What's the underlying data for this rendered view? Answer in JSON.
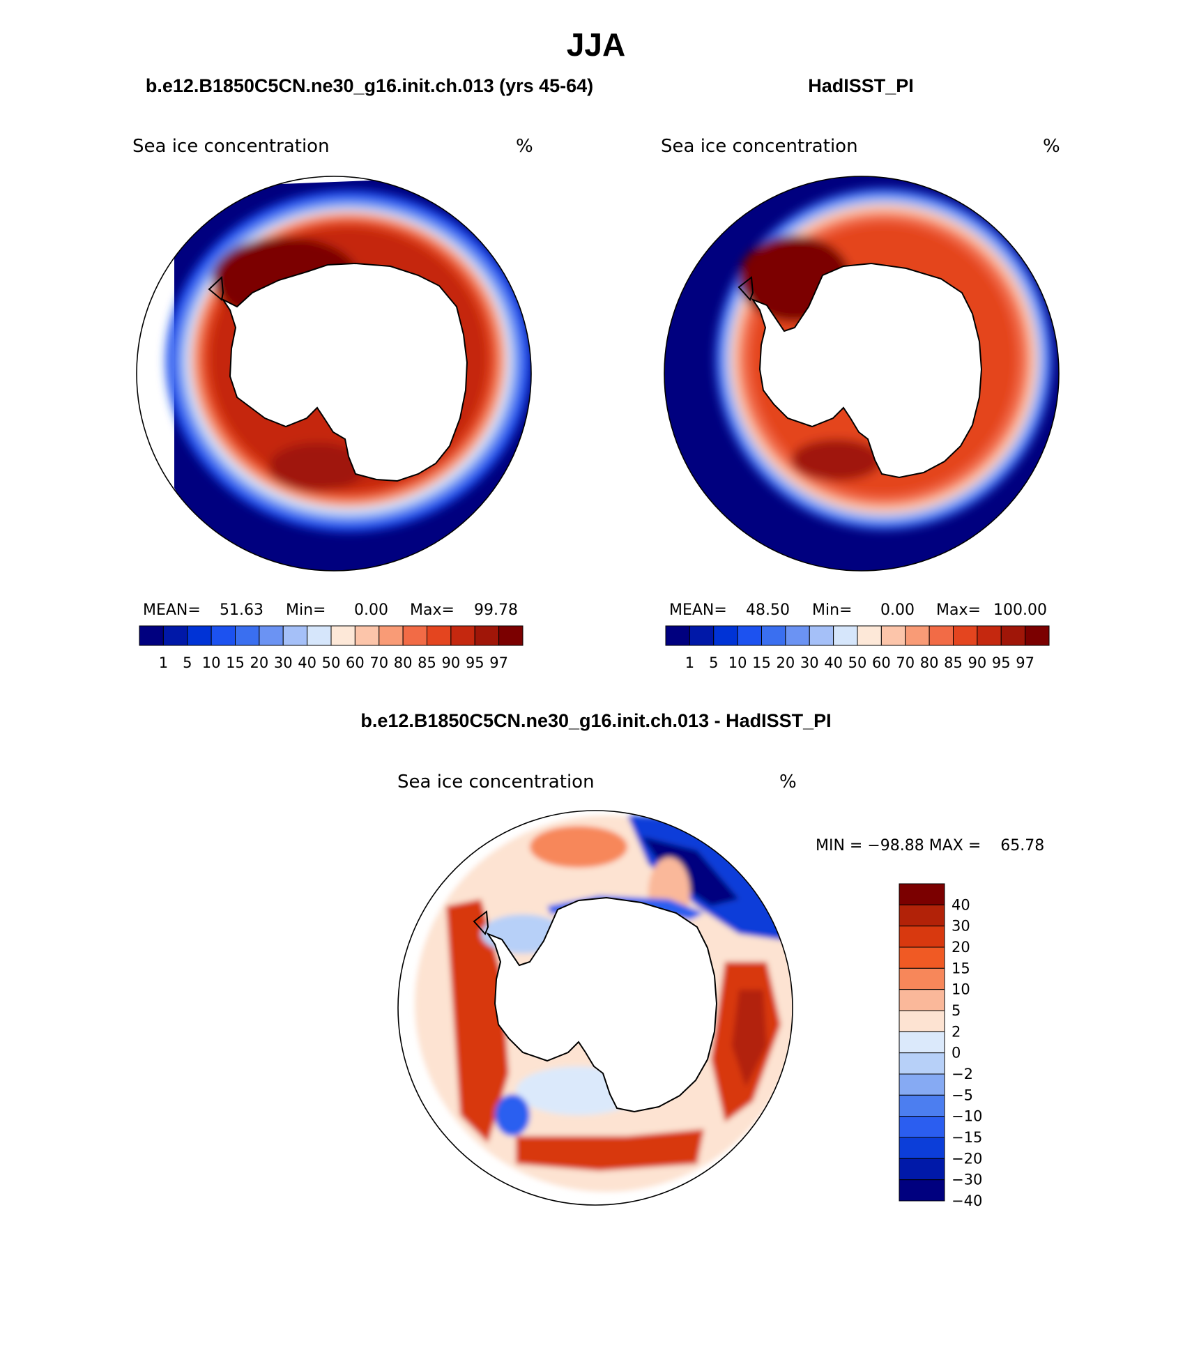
{
  "figure_title": "JJA",
  "panels": [
    {
      "title": "b.e12.B1850C5CN.ne30_g16.init.ch.013 (yrs 45-64)",
      "subtitle": "Sea ice concentration",
      "units": "%",
      "stats": {
        "mean_label": "MEAN=",
        "mean": "51.63",
        "min_label": "Min=",
        "min": "0.00",
        "max_label": "Max=",
        "max": "99.78"
      }
    },
    {
      "title": "HadISST_PI",
      "subtitle": "Sea ice concentration",
      "units": "%",
      "stats": {
        "mean_label": "MEAN=",
        "mean": "48.50",
        "min_label": "Min=",
        "min": "0.00",
        "max_label": "Max=",
        "max": "100.00"
      }
    }
  ],
  "diff_panel": {
    "title": "b.e12.B1850C5CN.ne30_g16.init.ch.013 - HadISST_PI",
    "subtitle": "Sea ice concentration",
    "units": "%",
    "minmax": "MIN = −98.88 MAX =    65.78"
  },
  "chart_data": [
    {
      "type": "heatmap",
      "projection": "south polar stereographic",
      "variable": "Sea ice concentration",
      "units": "%",
      "mean": 51.63,
      "min": 0.0,
      "max": 99.78,
      "colorbar": {
        "levels": [
          "1",
          "5",
          "10",
          "15",
          "20",
          "30",
          "40",
          "50",
          "60",
          "70",
          "80",
          "85",
          "90",
          "95",
          "97"
        ],
        "colors": [
          "#00007f",
          "#0018a8",
          "#0033d6",
          "#1c52f0",
          "#3a6ff0",
          "#6b93f3",
          "#a5c0f8",
          "#d6e6fb",
          "#fde8d8",
          "#fcc5aa",
          "#f99b76",
          "#f26b46",
          "#e4451f",
          "#c5280f",
          "#a01608",
          "#7b0000"
        ]
      }
    },
    {
      "type": "heatmap",
      "projection": "south polar stereographic",
      "variable": "Sea ice concentration",
      "units": "%",
      "mean": 48.5,
      "min": 0.0,
      "max": 100.0,
      "colorbar": {
        "levels": [
          "1",
          "5",
          "10",
          "15",
          "20",
          "30",
          "40",
          "50",
          "60",
          "70",
          "80",
          "85",
          "90",
          "95",
          "97"
        ],
        "colors": [
          "#00007f",
          "#0018a8",
          "#0033d6",
          "#1c52f0",
          "#3a6ff0",
          "#6b93f3",
          "#a5c0f8",
          "#d6e6fb",
          "#fde8d8",
          "#fcc5aa",
          "#f99b76",
          "#f26b46",
          "#e4451f",
          "#c5280f",
          "#a01608",
          "#7b0000"
        ]
      }
    },
    {
      "type": "heatmap",
      "projection": "south polar stereographic",
      "variable": "Sea ice concentration difference",
      "units": "%",
      "min": -98.88,
      "max": 65.78,
      "colorbar": {
        "levels": [
          "40",
          "30",
          "20",
          "15",
          "10",
          "5",
          "2",
          "0",
          "−2",
          "−5",
          "−10",
          "−15",
          "−20",
          "−30",
          "−40"
        ],
        "colors": [
          "#7b0000",
          "#b22208",
          "#d8390f",
          "#f05a24",
          "#f7875a",
          "#fab89a",
          "#fde3d2",
          "#dbe9fb",
          "#b7d0f8",
          "#86aaf3",
          "#4c7ef0",
          "#2b5ef0",
          "#0c3ed9",
          "#0019a9",
          "#00007f"
        ]
      }
    }
  ],
  "colors": {
    "land": "#ffffff",
    "ocean_open": "#00007f",
    "coast": "#000000"
  }
}
